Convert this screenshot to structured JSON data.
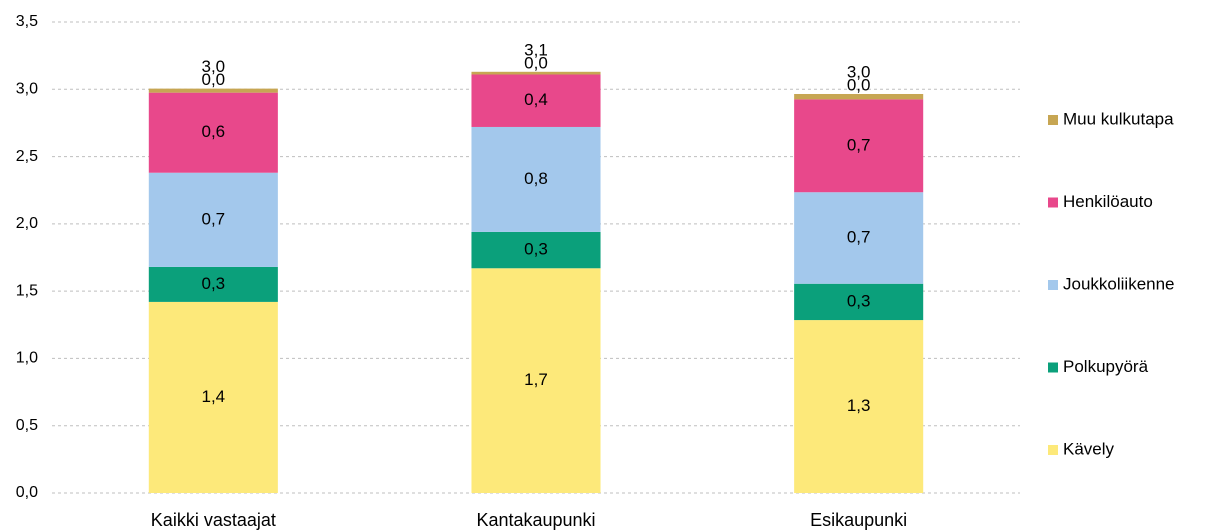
{
  "chart_data": {
    "type": "stacked-bar",
    "categories": [
      "Kaikki vastaajat",
      "Kantakaupunki",
      "Esikaupunki"
    ],
    "series": [
      {
        "name": "Kävely",
        "color": "#fde97a",
        "values": [
          1.42,
          1.67,
          1.285
        ],
        "value_labels": [
          "1,4",
          "1,7",
          "1,3"
        ]
      },
      {
        "name": "Polkupyörä",
        "color": "#0ba07b",
        "values": [
          0.26,
          0.27,
          0.27
        ],
        "value_labels": [
          "0,3",
          "0,3",
          "0,3"
        ]
      },
      {
        "name": "Joukkoliikenne",
        "color": "#a3c8ec",
        "values": [
          0.7,
          0.78,
          0.68
        ],
        "value_labels": [
          "0,7",
          "0,8",
          "0,7"
        ]
      },
      {
        "name": "Henkilöauto",
        "color": "#e8488b",
        "values": [
          0.595,
          0.39,
          0.69
        ],
        "value_labels": [
          "0,6",
          "0,4",
          "0,7"
        ]
      },
      {
        "name": "Muu kulkutapa",
        "color": "#c7a653",
        "values": [
          0.03,
          0.02,
          0.04
        ],
        "value_labels": [
          "0,0",
          "0,0",
          "0,0"
        ]
      }
    ],
    "totals": [
      3.005,
      3.13,
      2.965
    ],
    "total_labels": [
      "3,0",
      "3,1",
      "3,0"
    ],
    "ylim": [
      0,
      3.5
    ],
    "yticks": [
      {
        "value": 0,
        "label": "0,0"
      },
      {
        "value": 0.5,
        "label": "0,5"
      },
      {
        "value": 1,
        "label": "1,0"
      },
      {
        "value": 1.5,
        "label": "1,5"
      },
      {
        "value": 2,
        "label": "2,0"
      },
      {
        "value": 2.5,
        "label": "2,5"
      },
      {
        "value": 3,
        "label": "3,0"
      },
      {
        "value": 3.5,
        "label": "3,5"
      }
    ],
    "grid": true,
    "legend": "right"
  }
}
